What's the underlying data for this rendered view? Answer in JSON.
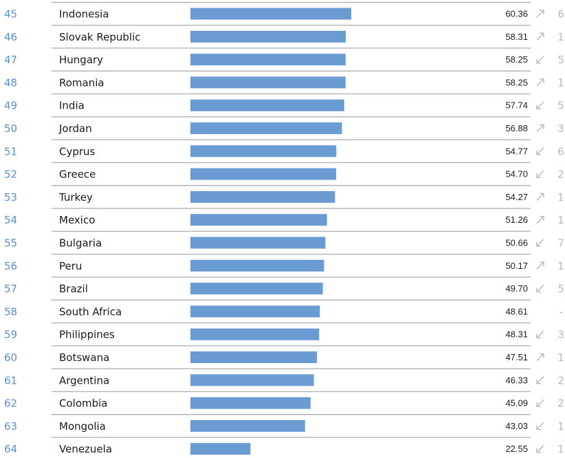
{
  "colors": {
    "bar": "#6a9bd3",
    "rank": "#5b8ec9",
    "separator": "#b3b3b3",
    "arrow": "#bdbdbd",
    "change": "#b7b7b7",
    "text": "#1a1a1a"
  },
  "chart_data": {
    "type": "bar",
    "orientation": "horizontal",
    "xlim": [
      0,
      100
    ],
    "grid": false,
    "rows": [
      {
        "rank": "45",
        "country": "Indonesia",
        "value": 60.36,
        "value_label": "60.36",
        "trend": "up",
        "trend_icon": "arrow-up-right-icon",
        "change": "6"
      },
      {
        "rank": "46",
        "country": "Slovak Republic",
        "value": 58.31,
        "value_label": "58.31",
        "trend": "up",
        "trend_icon": "arrow-up-right-icon",
        "change": "1"
      },
      {
        "rank": "47",
        "country": "Hungary",
        "value": 58.25,
        "value_label": "58.25",
        "trend": "down",
        "trend_icon": "arrow-down-left-icon",
        "change": "5"
      },
      {
        "rank": "48",
        "country": "Romania",
        "value": 58.25,
        "value_label": "58.25",
        "trend": "up",
        "trend_icon": "arrow-up-right-icon",
        "change": "1"
      },
      {
        "rank": "49",
        "country": "India",
        "value": 57.74,
        "value_label": "57.74",
        "trend": "down",
        "trend_icon": "arrow-down-left-icon",
        "change": "5"
      },
      {
        "rank": "50",
        "country": "Jordan",
        "value": 56.88,
        "value_label": "56.88",
        "trend": "up",
        "trend_icon": "arrow-up-right-icon",
        "change": "3"
      },
      {
        "rank": "51",
        "country": "Cyprus",
        "value": 54.77,
        "value_label": "54.77",
        "trend": "down",
        "trend_icon": "arrow-down-left-icon",
        "change": "6"
      },
      {
        "rank": "52",
        "country": "Greece",
        "value": 54.7,
        "value_label": "54.70",
        "trend": "down",
        "trend_icon": "arrow-down-left-icon",
        "change": "2"
      },
      {
        "rank": "53",
        "country": "Turkey",
        "value": 54.27,
        "value_label": "54.27",
        "trend": "up",
        "trend_icon": "arrow-up-right-icon",
        "change": "1"
      },
      {
        "rank": "54",
        "country": "Mexico",
        "value": 51.26,
        "value_label": "51.26",
        "trend": "up",
        "trend_icon": "arrow-up-right-icon",
        "change": "1"
      },
      {
        "rank": "55",
        "country": "Bulgaria",
        "value": 50.66,
        "value_label": "50.66",
        "trend": "down",
        "trend_icon": "arrow-down-left-icon",
        "change": "7"
      },
      {
        "rank": "56",
        "country": "Peru",
        "value": 50.17,
        "value_label": "50.17",
        "trend": "up",
        "trend_icon": "arrow-up-right-icon",
        "change": "1"
      },
      {
        "rank": "57",
        "country": "Brazil",
        "value": 49.7,
        "value_label": "49.70",
        "trend": "down",
        "trend_icon": "arrow-down-left-icon",
        "change": "5"
      },
      {
        "rank": "58",
        "country": "South Africa",
        "value": 48.61,
        "value_label": "48.61",
        "trend": "none",
        "trend_icon": "",
        "change": "-"
      },
      {
        "rank": "59",
        "country": "Philippines",
        "value": 48.31,
        "value_label": "48.31",
        "trend": "down",
        "trend_icon": "arrow-down-left-icon",
        "change": "3"
      },
      {
        "rank": "60",
        "country": "Botswana",
        "value": 47.51,
        "value_label": "47.51",
        "trend": "up",
        "trend_icon": "arrow-up-right-icon",
        "change": "1"
      },
      {
        "rank": "61",
        "country": "Argentina",
        "value": 46.33,
        "value_label": "46.33",
        "trend": "down",
        "trend_icon": "arrow-down-left-icon",
        "change": "2"
      },
      {
        "rank": "62",
        "country": "Colombia",
        "value": 45.09,
        "value_label": "45.09",
        "trend": "down",
        "trend_icon": "arrow-down-left-icon",
        "change": "2"
      },
      {
        "rank": "63",
        "country": "Mongolia",
        "value": 43.03,
        "value_label": "43.03",
        "trend": "down",
        "trend_icon": "arrow-down-left-icon",
        "change": "1"
      },
      {
        "rank": "64",
        "country": "Venezuela",
        "value": 22.55,
        "value_label": "22.55",
        "trend": "down",
        "trend_icon": "arrow-down-left-icon",
        "change": "1"
      }
    ]
  }
}
